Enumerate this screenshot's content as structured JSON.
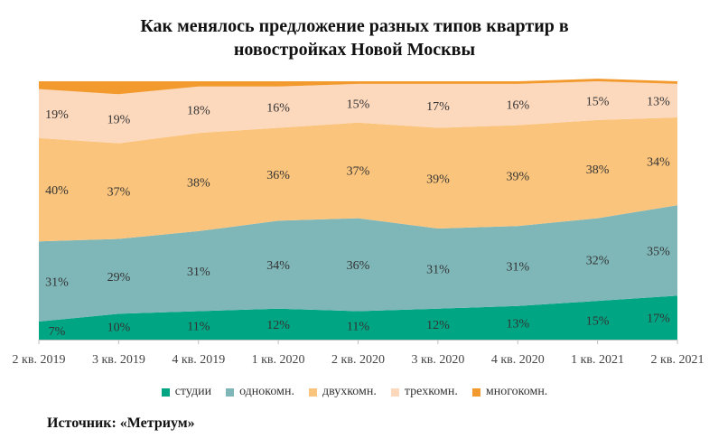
{
  "title_line1": "Как менялось предложение разных типов квартир в",
  "title_line2": "новостройках Новой Москвы",
  "source": "Источник: «Метриум»",
  "chart_data": {
    "type": "area",
    "stacked": true,
    "percent": true,
    "categories": [
      "2 кв. 2019",
      "3 кв. 2019",
      "4 кв. 2019",
      "1 кв. 2020",
      "2 кв. 2020",
      "3 кв. 2020",
      "4 кв. 2020",
      "1 кв. 2021",
      "2 кв. 2021"
    ],
    "series": [
      {
        "name": "студии",
        "color": "#00a583",
        "values": [
          7,
          10,
          11,
          12,
          11,
          12,
          13,
          15,
          17
        ],
        "labels": [
          "7%",
          "10%",
          "11%",
          "12%",
          "11%",
          "12%",
          "13%",
          "15%",
          "17%"
        ]
      },
      {
        "name": "однокомн.",
        "color": "#7fb6b8",
        "values": [
          31,
          29,
          31,
          34,
          36,
          31,
          31,
          32,
          35
        ],
        "labels": [
          "31%",
          "29%",
          "31%",
          "34%",
          "36%",
          "31%",
          "31%",
          "32%",
          "35%"
        ]
      },
      {
        "name": "двухкомн.",
        "color": "#fbc47c",
        "values": [
          40,
          37,
          38,
          36,
          37,
          39,
          39,
          38,
          34
        ],
        "labels": [
          "40%",
          "37%",
          "38%",
          "36%",
          "37%",
          "39%",
          "39%",
          "38%",
          "34%"
        ]
      },
      {
        "name": "трехкомн.",
        "color": "#fcd8bd",
        "values": [
          19,
          19,
          18,
          16,
          15,
          17,
          16,
          15,
          13
        ],
        "labels": [
          "19%",
          "19%",
          "18%",
          "16%",
          "15%",
          "17%",
          "16%",
          "15%",
          "13%"
        ]
      },
      {
        "name": "многокомн.",
        "color": "#f29a2e",
        "values": [
          3,
          5,
          2,
          2,
          1,
          1,
          1,
          1,
          1
        ],
        "labels": []
      }
    ],
    "ylim": [
      0,
      100
    ],
    "grid": false,
    "legend_position": "bottom"
  }
}
